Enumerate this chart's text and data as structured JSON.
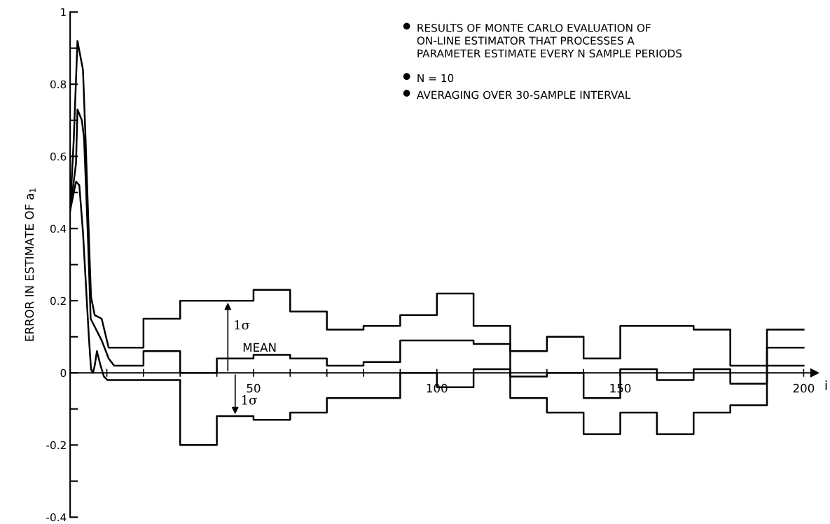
{
  "chart_data": {
    "type": "line",
    "ylabel": "ERROR IN ESTIMATE OF a$_{1}$",
    "xlabel": "i",
    "xlim": [
      0,
      203
    ],
    "ylim": [
      -0.4,
      1
    ],
    "xticks": [
      {
        "value": 10,
        "label": null
      },
      {
        "value": 20,
        "label": null
      },
      {
        "value": 30,
        "label": null
      },
      {
        "value": 40,
        "label": null
      },
      50,
      {
        "value": 60,
        "label": null
      },
      {
        "value": 70,
        "label": null
      },
      {
        "value": 80,
        "label": null
      },
      {
        "value": 90,
        "label": null
      },
      100,
      {
        "value": 110,
        "label": null
      },
      {
        "value": 120,
        "label": null
      },
      {
        "value": 130,
        "label": null
      },
      {
        "value": 140,
        "label": null
      },
      150,
      {
        "value": 160,
        "label": null
      },
      {
        "value": 170,
        "label": null
      },
      {
        "value": 180,
        "label": null
      },
      {
        "value": 190,
        "label": null
      },
      200
    ],
    "yticks": [
      -0.4,
      {
        "value": -0.3,
        "label": null
      },
      -0.2,
      {
        "value": -0.1,
        "label": null
      },
      0,
      {
        "value": 0.1,
        "label": null
      },
      0.2,
      {
        "value": 0.3,
        "label": null
      },
      0.4,
      {
        "value": 0.5,
        "label": null
      },
      0.6,
      {
        "value": 0.7,
        "label": null
      },
      0.8,
      {
        "value": 0.9,
        "label": null
      },
      1
    ],
    "grid": false,
    "legend": false,
    "marker": "none",
    "line_style": "solid",
    "series": [
      {
        "color": "#000000",
        "x": [
          0,
          1.0,
          2.0,
          3.5,
          4.2,
          5.3,
          5.7,
          6.7,
          8.6,
          10.5,
          20,
          20,
          30,
          30,
          50,
          50,
          60,
          60,
          70,
          70,
          80,
          80,
          90,
          90,
          100,
          100,
          110,
          110,
          120,
          120,
          130,
          130,
          140,
          140,
          150,
          150,
          170,
          170,
          180,
          180,
          190,
          190,
          200
        ],
        "values": [
          0.45,
          0.65,
          0.92,
          0.84,
          0.65,
          0.32,
          0.21,
          0.16,
          0.15,
          0.07,
          0.07,
          0.15,
          0.15,
          0.2,
          0.2,
          0.23,
          0.23,
          0.17,
          0.17,
          0.12,
          0.12,
          0.13,
          0.13,
          0.16,
          0.16,
          0.22,
          0.22,
          0.13,
          0.13,
          0.06,
          0.06,
          0.1,
          0.1,
          0.04,
          0.04,
          0.13,
          0.13,
          0.12,
          0.12,
          0.02,
          0.02,
          0.12,
          0.12
        ]
      },
      {
        "color": "#000000",
        "x": [
          0,
          0.6,
          1.6,
          2.0,
          3.2,
          3.8,
          4.8,
          5.6,
          7.6,
          8.6,
          10.5,
          12,
          20,
          20,
          30,
          30,
          40,
          40,
          50,
          50,
          60,
          60,
          70,
          70,
          80,
          80,
          90,
          90,
          100,
          100,
          110,
          110,
          120,
          120,
          130,
          130,
          140,
          140,
          150,
          150,
          160,
          160,
          170,
          170,
          180,
          180,
          190,
          190,
          200
        ],
        "values": [
          0.47,
          0.5,
          0.58,
          0.73,
          0.7,
          0.65,
          0.39,
          0.15,
          0.11,
          0.09,
          0.04,
          0.02,
          0.02,
          0.06,
          0.06,
          0.0,
          0.0,
          0.04,
          0.04,
          0.05,
          0.05,
          0.04,
          0.04,
          0.02,
          0.02,
          0.03,
          0.03,
          0.09,
          0.09,
          0.09,
          0.09,
          0.08,
          0.08,
          -0.01,
          -0.01,
          0.0,
          0.0,
          -0.07,
          -0.07,
          0.01,
          0.01,
          -0.02,
          -0.02,
          0.01,
          0.01,
          -0.03,
          -0.03,
          0.07,
          0.07
        ]
      },
      {
        "color": "#000000",
        "x": [
          0,
          1.6,
          2.5,
          3.5,
          5.1,
          5.7,
          6.2,
          6.7,
          7.3,
          8.3,
          9.2,
          10.2,
          30,
          30,
          40,
          40,
          50,
          50,
          60,
          60,
          70,
          70,
          90,
          90,
          100,
          100,
          110,
          110,
          120,
          120,
          130,
          130,
          140,
          140,
          150,
          150,
          160,
          160,
          170,
          170,
          180,
          180,
          190,
          190,
          200
        ],
        "values": [
          0.45,
          0.53,
          0.52,
          0.39,
          0.1,
          0.01,
          0.0,
          0.02,
          0.06,
          0.02,
          -0.01,
          -0.02,
          -0.02,
          -0.2,
          -0.2,
          -0.12,
          -0.12,
          -0.13,
          -0.13,
          -0.11,
          -0.11,
          -0.07,
          -0.07,
          0.0,
          0.0,
          -0.04,
          -0.04,
          0.01,
          0.01,
          -0.07,
          -0.07,
          -0.11,
          -0.11,
          -0.17,
          -0.17,
          -0.11,
          -0.11,
          -0.17,
          -0.17,
          -0.11,
          -0.11,
          -0.09,
          -0.09,
          0.02,
          0.02
        ]
      }
    ],
    "annotations": [
      "RESULTS OF MONTE CARLO EVALUATION OF\nON-LINE ESTIMATOR THAT PROCESSES A\nPARAMETER ESTIMATE EVERY N SAMPLE PERIODS",
      "N = 10",
      "AVERAGING OVER 30-SAMPLE INTERVAL",
      "MEAN",
      "1σ",
      "1σ"
    ]
  }
}
